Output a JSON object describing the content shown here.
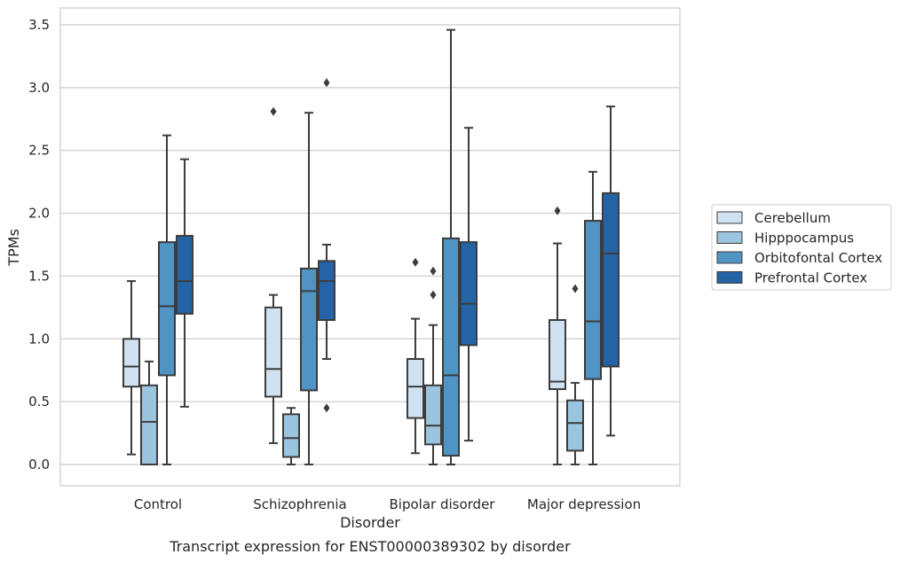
{
  "chart_data": {
    "type": "box",
    "caption": "Transcript expression for ENST00000389302 by disorder",
    "xlabel": "Disorder",
    "ylabel": "TPMs",
    "ylim": [
      -0.17,
      3.65
    ],
    "yticks": [
      "0.0",
      "0.5",
      "1.0",
      "1.5",
      "2.0",
      "2.5",
      "3.0",
      "3.5"
    ],
    "grid": true,
    "legend_position": "right",
    "categories": [
      "Control",
      "Schizophrenia",
      "Bipolar disorder",
      "Major depression"
    ],
    "series": [
      {
        "name": "Cerebellum",
        "color": "#d0e2f1",
        "boxes": [
          {
            "whisker_low": 0.08,
            "q1": 0.62,
            "median": 0.78,
            "q3": 1.0,
            "whisker_high": 1.46,
            "outliers": []
          },
          {
            "whisker_low": 0.17,
            "q1": 0.54,
            "median": 0.76,
            "q3": 1.25,
            "whisker_high": 1.35,
            "outliers": [
              2.81
            ]
          },
          {
            "whisker_low": 0.09,
            "q1": 0.37,
            "median": 0.62,
            "q3": 0.84,
            "whisker_high": 1.16,
            "outliers": [
              1.61
            ]
          },
          {
            "whisker_low": 0.0,
            "q1": 0.6,
            "median": 0.66,
            "q3": 1.15,
            "whisker_high": 1.76,
            "outliers": [
              2.02
            ]
          }
        ]
      },
      {
        "name": "Hipppocampus",
        "color": "#9bc4de",
        "boxes": [
          {
            "whisker_low": 0.0,
            "q1": 0.0,
            "median": 0.34,
            "q3": 0.63,
            "whisker_high": 0.82,
            "outliers": []
          },
          {
            "whisker_low": 0.0,
            "q1": 0.06,
            "median": 0.21,
            "q3": 0.4,
            "whisker_high": 0.45,
            "outliers": []
          },
          {
            "whisker_low": 0.0,
            "q1": 0.16,
            "median": 0.31,
            "q3": 0.63,
            "whisker_high": 1.11,
            "outliers": [
              1.35,
              1.54
            ]
          },
          {
            "whisker_low": 0.0,
            "q1": 0.11,
            "median": 0.33,
            "q3": 0.51,
            "whisker_high": 0.65,
            "outliers": [
              1.4
            ]
          }
        ]
      },
      {
        "name": "Orbitofontal Cortex",
        "color": "#5093c5",
        "boxes": [
          {
            "whisker_low": 0.0,
            "q1": 0.71,
            "median": 1.26,
            "q3": 1.77,
            "whisker_high": 2.62,
            "outliers": []
          },
          {
            "whisker_low": 0.0,
            "q1": 0.59,
            "median": 1.38,
            "q3": 1.56,
            "whisker_high": 2.8,
            "outliers": []
          },
          {
            "whisker_low": 0.0,
            "q1": 0.07,
            "median": 0.71,
            "q3": 1.8,
            "whisker_high": 3.46,
            "outliers": []
          },
          {
            "whisker_low": 0.0,
            "q1": 0.68,
            "median": 1.14,
            "q3": 1.94,
            "whisker_high": 2.33,
            "outliers": []
          }
        ]
      },
      {
        "name": "Prefrontal Cortex",
        "color": "#2464a6",
        "boxes": [
          {
            "whisker_low": 0.46,
            "q1": 1.2,
            "median": 1.46,
            "q3": 1.82,
            "whisker_high": 2.43,
            "outliers": []
          },
          {
            "whisker_low": 0.84,
            "q1": 1.15,
            "median": 1.46,
            "q3": 1.62,
            "whisker_high": 1.75,
            "outliers": [
              0.45,
              3.04
            ]
          },
          {
            "whisker_low": 0.19,
            "q1": 0.95,
            "median": 1.28,
            "q3": 1.77,
            "whisker_high": 2.68,
            "outliers": []
          },
          {
            "whisker_low": 0.23,
            "q1": 0.78,
            "median": 1.68,
            "q3": 2.16,
            "whisker_high": 2.85,
            "outliers": []
          }
        ]
      }
    ]
  }
}
